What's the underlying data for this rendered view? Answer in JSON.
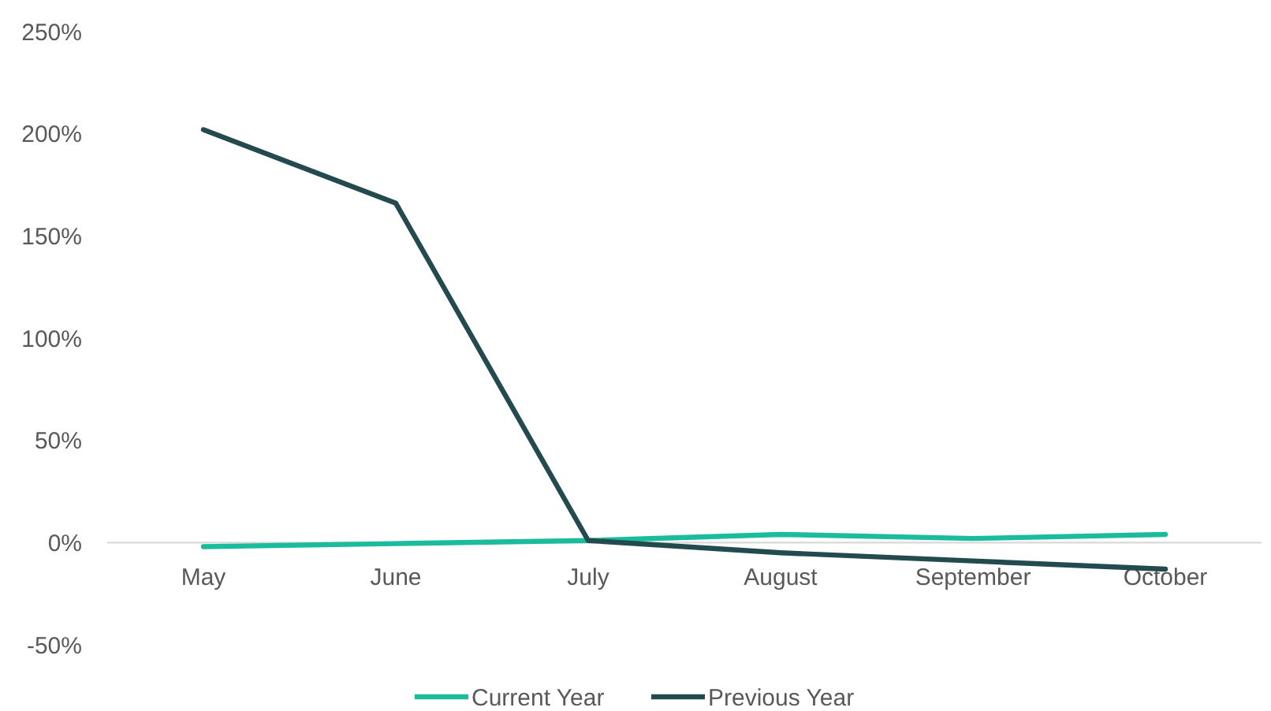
{
  "chart_data": {
    "type": "line",
    "categories": [
      "May",
      "June",
      "July",
      "August",
      "September",
      "October"
    ],
    "series": [
      {
        "name": "Current Year",
        "color": "#1abc9c",
        "values": [
          -2,
          -0.5,
          1,
          4,
          2,
          4
        ]
      },
      {
        "name": "Previous Year",
        "color": "#234b4f",
        "values": [
          202,
          166,
          1,
          -5,
          -9,
          -13
        ]
      }
    ],
    "ylim": [
      -50,
      250
    ],
    "yticks": [
      {
        "value": -50,
        "label": "-50%"
      },
      {
        "value": 0,
        "label": "0%"
      },
      {
        "value": 50,
        "label": "50%"
      },
      {
        "value": 100,
        "label": "100%"
      },
      {
        "value": 150,
        "label": "150%"
      },
      {
        "value": 200,
        "label": "200%"
      },
      {
        "value": 250,
        "label": "250%"
      }
    ],
    "grid": false,
    "legend": "bottom",
    "marker": "none",
    "line_style": "solid"
  }
}
